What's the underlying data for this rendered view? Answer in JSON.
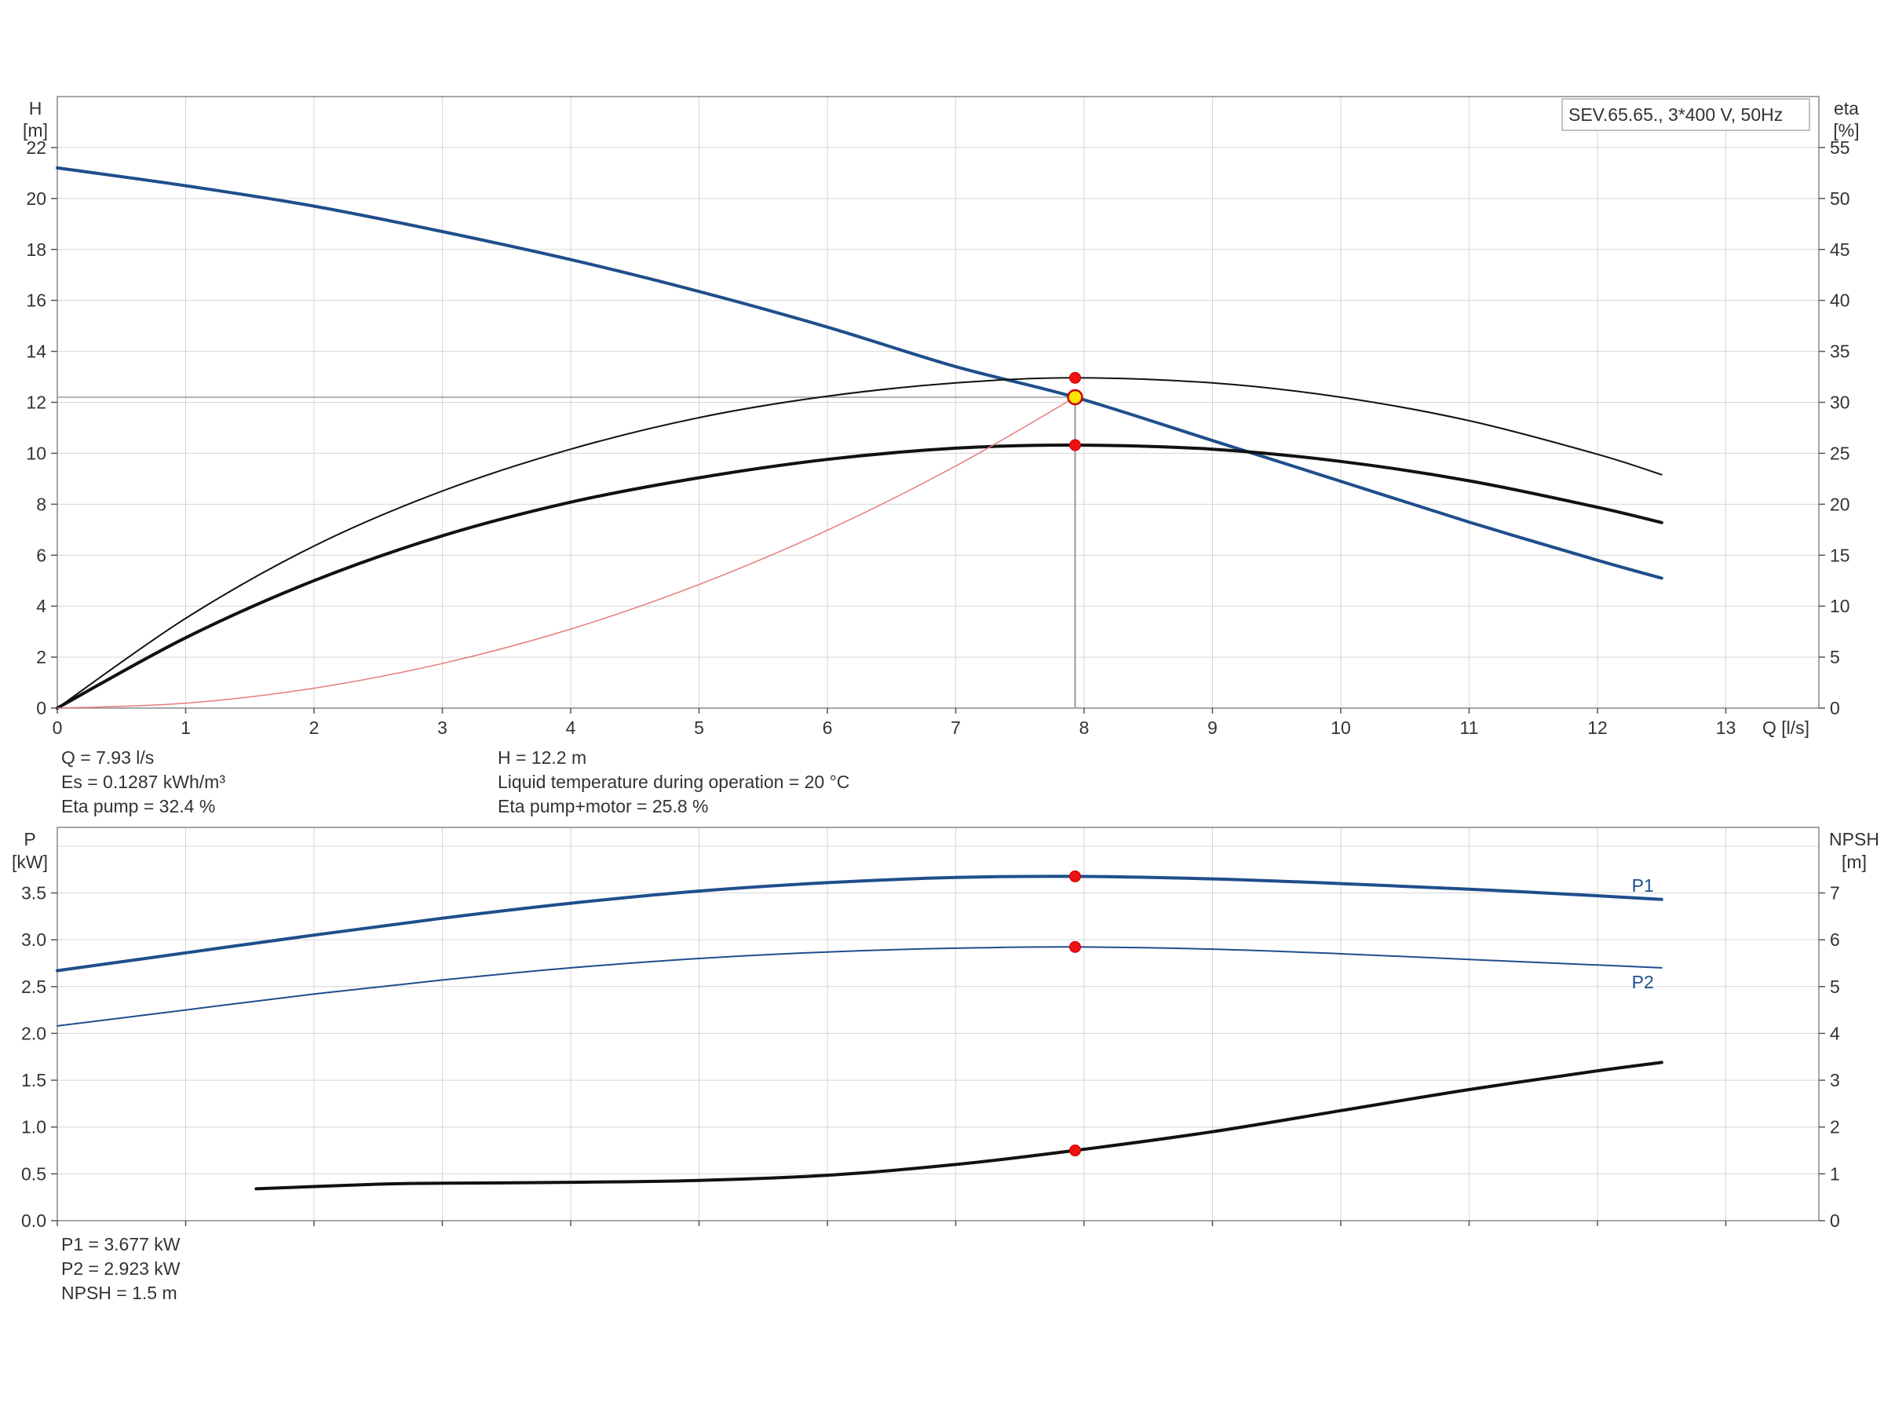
{
  "chart_data": [
    {
      "type": "line",
      "title": "SEV.65.65., 3*400 V, 50Hz",
      "xlabel": "Q [l/s]",
      "ylabel_left": [
        "H",
        "[m]"
      ],
      "ylabel_right": [
        "eta",
        "[%]"
      ],
      "xlim": [
        0,
        13.5
      ],
      "ylim_left": [
        0,
        24
      ],
      "ylim_right": [
        0,
        60
      ],
      "xticks": [
        0,
        1,
        2,
        3,
        4,
        5,
        6,
        7,
        8,
        9,
        10,
        11,
        12,
        13
      ],
      "yticks_left": [
        0,
        2,
        4,
        6,
        8,
        10,
        12,
        14,
        16,
        18,
        20,
        22
      ],
      "yticks_right": [
        0,
        5,
        10,
        15,
        20,
        25,
        30,
        35,
        40,
        45,
        50,
        55
      ],
      "grid": true,
      "series": [
        {
          "axis": "left",
          "color": "#1f4e8c",
          "width": 4,
          "x": [
            0,
            1,
            2,
            3,
            4,
            5,
            6,
            7,
            7.93,
            9,
            10,
            11,
            12,
            12.5
          ],
          "y": [
            21.2,
            20.5,
            19.7,
            18.7,
            17.6,
            16.35,
            14.95,
            13.4,
            12.2,
            10.5,
            8.9,
            7.3,
            5.8,
            5.1
          ]
        },
        {
          "axis": "right",
          "color": "#111111",
          "width": 2,
          "x": [
            0,
            1,
            2,
            3,
            4,
            5,
            6,
            7,
            7.93,
            9,
            10,
            11,
            12,
            12.5
          ],
          "y": [
            0,
            8.8,
            15.9,
            21.3,
            25.4,
            28.5,
            30.6,
            31.9,
            32.4,
            31.9,
            30.5,
            28.2,
            24.9,
            22.9
          ]
        },
        {
          "axis": "right",
          "color": "#111111",
          "width": 4,
          "x": [
            0,
            1,
            2,
            3,
            4,
            5,
            6,
            7,
            7.93,
            9,
            10,
            11,
            12,
            12.5
          ],
          "y": [
            0,
            6.9,
            12.5,
            16.9,
            20.2,
            22.6,
            24.4,
            25.5,
            25.8,
            25.4,
            24.2,
            22.3,
            19.7,
            18.2
          ]
        },
        {
          "axis": "left",
          "color": "#e87a7a",
          "width": 1.5,
          "x": [
            0,
            1,
            2,
            3,
            4,
            5,
            6,
            7,
            7.93
          ],
          "y": [
            0,
            0.19,
            0.78,
            1.75,
            3.1,
            4.85,
            6.98,
            9.5,
            12.2
          ]
        }
      ],
      "operating_point": {
        "x": 7.93,
        "y": 12.2
      },
      "duty_markers": [
        {
          "axis": "right",
          "x": 7.93,
          "y": 32.4
        },
        {
          "axis": "right",
          "x": 7.93,
          "y": 25.8
        }
      ]
    },
    {
      "type": "line",
      "ylabel_left": [
        "P",
        "[kW]"
      ],
      "ylabel_right": [
        "NPSH",
        "[m]"
      ],
      "xlim": [
        0,
        13.5
      ],
      "ylim_left": [
        0,
        4.2
      ],
      "ylim_right": [
        0,
        8.4
      ],
      "xticks": [
        0,
        1,
        2,
        3,
        4,
        5,
        6,
        7,
        8,
        9,
        10,
        11,
        12,
        13
      ],
      "yticks_left": [
        0.0,
        0.5,
        1.0,
        1.5,
        2.0,
        2.5,
        3.0,
        3.5
      ],
      "yticks_right": [
        0,
        1,
        2,
        3,
        4,
        5,
        6,
        7
      ],
      "grid": true,
      "series": [
        {
          "name": "P1",
          "axis": "left",
          "color": "#1f4e8c",
          "width": 4,
          "x": [
            0,
            1,
            2,
            3,
            4,
            5,
            6,
            7,
            7.93,
            9,
            10,
            11,
            12,
            12.5
          ],
          "y": [
            2.67,
            2.86,
            3.05,
            3.23,
            3.39,
            3.52,
            3.61,
            3.665,
            3.677,
            3.65,
            3.6,
            3.54,
            3.47,
            3.43
          ]
        },
        {
          "name": "P2",
          "axis": "left",
          "color": "#1f4e8c",
          "width": 2,
          "x": [
            0,
            1,
            2,
            3,
            4,
            5,
            6,
            7,
            7.93,
            9,
            10,
            11,
            12,
            12.5
          ],
          "y": [
            2.08,
            2.25,
            2.42,
            2.57,
            2.7,
            2.8,
            2.87,
            2.91,
            2.923,
            2.9,
            2.85,
            2.79,
            2.73,
            2.7
          ]
        },
        {
          "axis": "right",
          "color": "#111111",
          "width": 4,
          "x": [
            1.55,
            2.5,
            3,
            4,
            5,
            6,
            7,
            7.93,
            9,
            10,
            11,
            12,
            12.5
          ],
          "y": [
            0.68,
            0.78,
            0.8,
            0.82,
            0.86,
            0.97,
            1.2,
            1.5,
            1.9,
            2.35,
            2.8,
            3.2,
            3.38
          ]
        }
      ],
      "markers": [
        {
          "axis": "left",
          "x": 7.93,
          "y": 3.677
        },
        {
          "axis": "left",
          "x": 7.93,
          "y": 2.923
        },
        {
          "axis": "right",
          "x": 7.93,
          "y": 1.5
        }
      ]
    }
  ],
  "readout_top": {
    "col1": [
      "Q = 7.93 l/s",
      "Es = 0.1287 kWh/m³",
      "Eta pump = 32.4 %"
    ],
    "col2": [
      "H = 12.2 m",
      "Liquid temperature during operation = 20 °C",
      "Eta pump+motor = 25.8 %"
    ]
  },
  "readout_bottom": [
    "P1 = 3.677 kW",
    "P2 = 2.923 kW",
    "NPSH = 1.5 m"
  ]
}
